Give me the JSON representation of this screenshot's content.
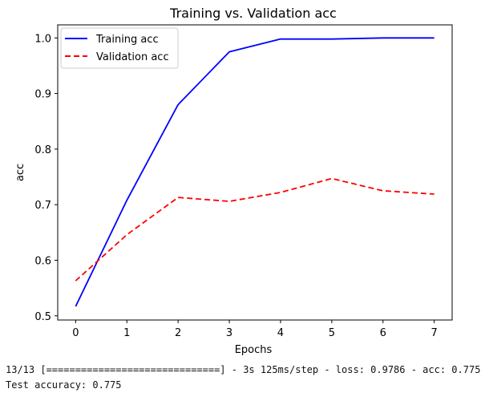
{
  "chart_data": {
    "type": "line",
    "title": "Training vs. Validation acc",
    "xlabel": "Epochs",
    "ylabel": "acc",
    "x": [
      0,
      1,
      2,
      3,
      4,
      5,
      6,
      7
    ],
    "xlim": [
      -0.35,
      7.35
    ],
    "ylim": [
      0.4925,
      1.0235
    ],
    "xticks": [
      0,
      1,
      2,
      3,
      4,
      5,
      6,
      7
    ],
    "yticks": [
      0.5,
      0.6,
      0.7,
      0.8,
      0.9,
      1.0
    ],
    "ytick_labels": [
      "0.5",
      "0.6",
      "0.7",
      "0.8",
      "0.9",
      "1.0"
    ],
    "legend_position": "top-left",
    "series": [
      {
        "name": "Training acc",
        "color": "#0000ff",
        "style": "solid",
        "values": [
          0.517,
          0.708,
          0.88,
          0.975,
          0.998,
          0.998,
          1.0,
          1.0
        ]
      },
      {
        "name": "Validation acc",
        "color": "#ff0000",
        "style": "dashed",
        "values": [
          0.563,
          0.646,
          0.713,
          0.706,
          0.722,
          0.747,
          0.725,
          0.719
        ]
      }
    ]
  },
  "console": {
    "line1": "13/13 [==============================] - 3s 125ms/step - loss: 0.9786 - acc: 0.7750",
    "line2": "Test accuracy: 0.775"
  }
}
